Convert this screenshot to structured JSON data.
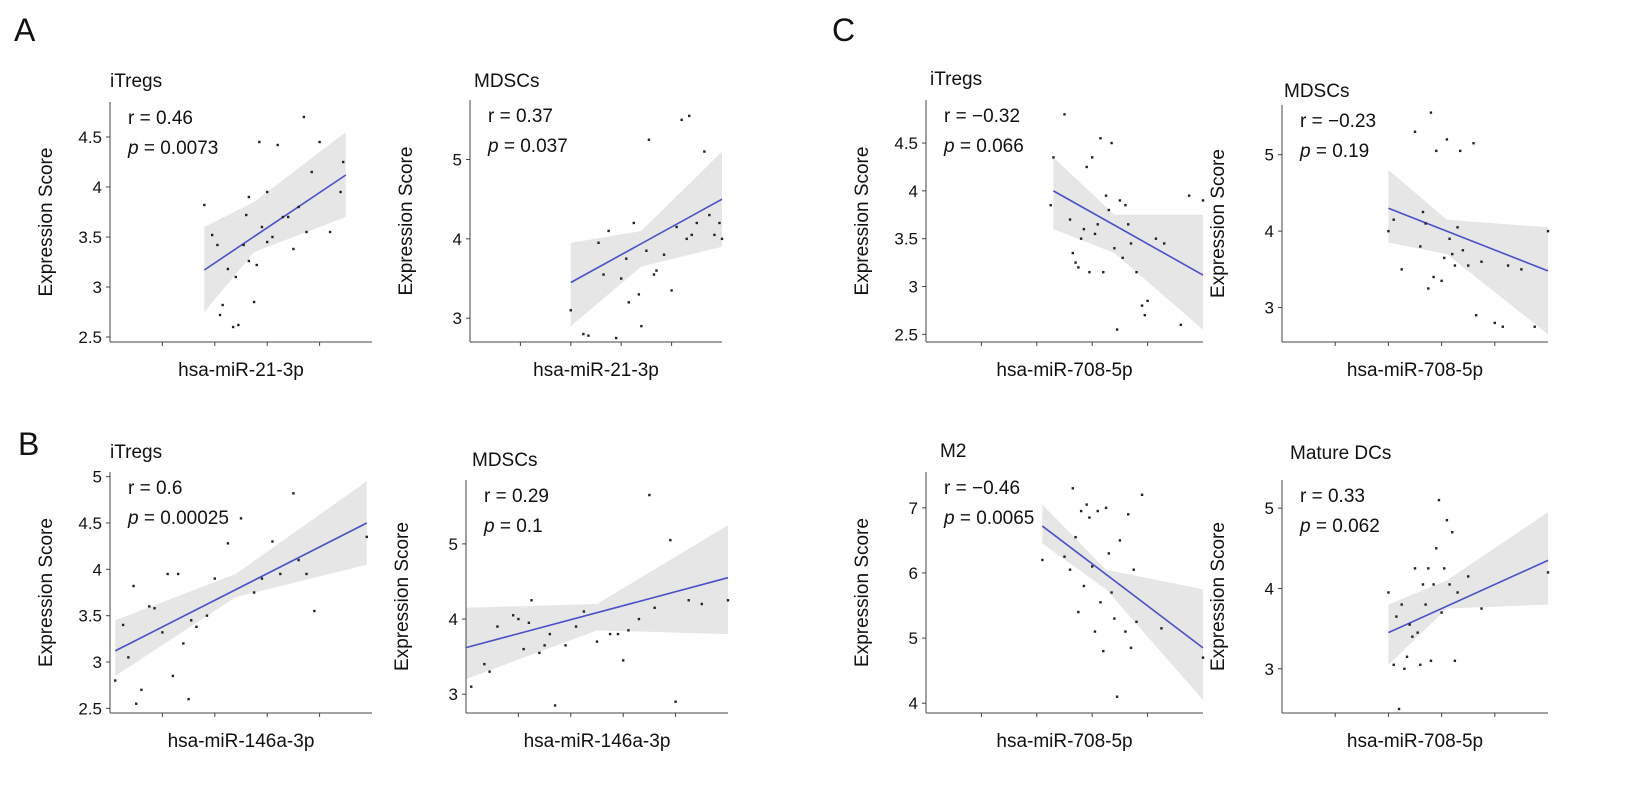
{
  "panel_labels": [
    "A",
    "B",
    "C"
  ],
  "axis_ylabel": "Expression Score",
  "stat_r_prefix": "r = ",
  "stat_p_prefix": "p",
  "stat_p_eq": " = ",
  "colors": {
    "line": "#4a50c8",
    "band": "#e6e6e6",
    "axis": "#444444",
    "point": "#222222"
  },
  "chart_data": [
    {
      "type": "scatter",
      "title": "iTregs",
      "xlabel": "hsa-miR-21-3p",
      "ylabel": "Expression Score",
      "r": "0.46",
      "p": "0.0073",
      "ylim": [
        2.45,
        4.85
      ],
      "yticks": [
        "2.5",
        "3",
        "3.5",
        "4",
        "4.5"
      ],
      "xlim": [
        0,
        1
      ],
      "points": [
        [
          0.36,
          3.82
        ],
        [
          0.39,
          3.52
        ],
        [
          0.41,
          3.42
        ],
        [
          0.42,
          2.72
        ],
        [
          0.43,
          2.82
        ],
        [
          0.45,
          3.18
        ],
        [
          0.47,
          2.6
        ],
        [
          0.48,
          3.1
        ],
        [
          0.49,
          2.62
        ],
        [
          0.51,
          3.42
        ],
        [
          0.52,
          3.72
        ],
        [
          0.53,
          3.26
        ],
        [
          0.53,
          3.9
        ],
        [
          0.55,
          2.85
        ],
        [
          0.56,
          3.22
        ],
        [
          0.57,
          4.45
        ],
        [
          0.58,
          3.6
        ],
        [
          0.6,
          3.45
        ],
        [
          0.6,
          3.95
        ],
        [
          0.62,
          3.5
        ],
        [
          0.64,
          4.42
        ],
        [
          0.66,
          3.7
        ],
        [
          0.68,
          3.7
        ],
        [
          0.7,
          3.38
        ],
        [
          0.72,
          3.8
        ],
        [
          0.74,
          4.7
        ],
        [
          0.75,
          3.55
        ],
        [
          0.77,
          4.15
        ],
        [
          0.8,
          4.45
        ],
        [
          0.84,
          3.55
        ],
        [
          0.88,
          3.95
        ],
        [
          0.89,
          4.25
        ]
      ],
      "fit": {
        "x": [
          0.36,
          0.9
        ],
        "y": [
          3.17,
          4.12
        ]
      },
      "band": [
        [
          0.36,
          2.75,
          3.6
        ],
        [
          0.55,
          3.35,
          3.85
        ],
        [
          0.9,
          3.7,
          4.55
        ]
      ]
    },
    {
      "type": "scatter",
      "title": "MDSCs",
      "xlabel": "hsa-miR-21-3p",
      "ylabel": "Expression Score",
      "r": "0.37",
      "p": "0.037",
      "ylim": [
        2.7,
        5.75
      ],
      "yticks": [
        "3",
        "4",
        "5"
      ],
      "xlim": [
        0,
        1
      ],
      "points": [
        [
          0.4,
          3.1
        ],
        [
          0.45,
          2.8
        ],
        [
          0.47,
          2.78
        ],
        [
          0.51,
          3.95
        ],
        [
          0.53,
          3.55
        ],
        [
          0.55,
          4.1
        ],
        [
          0.58,
          2.75
        ],
        [
          0.6,
          3.5
        ],
        [
          0.62,
          3.75
        ],
        [
          0.63,
          3.2
        ],
        [
          0.65,
          4.2
        ],
        [
          0.67,
          3.3
        ],
        [
          0.68,
          2.9
        ],
        [
          0.7,
          3.85
        ],
        [
          0.71,
          5.25
        ],
        [
          0.73,
          3.55
        ],
        [
          0.74,
          3.6
        ],
        [
          0.77,
          3.8
        ],
        [
          0.8,
          3.35
        ],
        [
          0.82,
          4.15
        ],
        [
          0.84,
          5.5
        ],
        [
          0.86,
          4.0
        ],
        [
          0.87,
          5.55
        ],
        [
          0.88,
          4.05
        ],
        [
          0.9,
          4.2
        ],
        [
          0.93,
          5.1
        ],
        [
          0.95,
          4.3
        ],
        [
          0.97,
          4.05
        ],
        [
          0.99,
          4.2
        ],
        [
          1.0,
          4.0
        ]
      ],
      "fit": {
        "x": [
          0.4,
          1.0
        ],
        "y": [
          3.45,
          4.5
        ]
      },
      "band": [
        [
          0.4,
          2.9,
          3.95
        ],
        [
          0.68,
          3.65,
          4.1
        ],
        [
          1.0,
          3.9,
          5.1
        ]
      ]
    },
    {
      "type": "scatter",
      "title": "iTregs",
      "xlabel": "hsa-miR-146a-3p",
      "ylabel": "Expression Score",
      "r": "0.6",
      "p": "0.00025",
      "ylim": [
        2.45,
        5.05
      ],
      "yticks": [
        "2.5",
        "3",
        "3.5",
        "4",
        "4.5",
        "5"
      ],
      "xlim": [
        0,
        1
      ],
      "points": [
        [
          0.02,
          2.8
        ],
        [
          0.05,
          3.4
        ],
        [
          0.07,
          3.05
        ],
        [
          0.09,
          3.82
        ],
        [
          0.1,
          2.55
        ],
        [
          0.12,
          2.7
        ],
        [
          0.15,
          3.6
        ],
        [
          0.17,
          3.58
        ],
        [
          0.2,
          3.32
        ],
        [
          0.22,
          3.95
        ],
        [
          0.24,
          2.85
        ],
        [
          0.26,
          3.95
        ],
        [
          0.28,
          3.2
        ],
        [
          0.3,
          2.6
        ],
        [
          0.31,
          3.45
        ],
        [
          0.33,
          3.38
        ],
        [
          0.37,
          3.5
        ],
        [
          0.4,
          3.9
        ],
        [
          0.45,
          4.28
        ],
        [
          0.5,
          4.55
        ],
        [
          0.55,
          3.75
        ],
        [
          0.58,
          3.9
        ],
        [
          0.62,
          4.3
        ],
        [
          0.65,
          3.95
        ],
        [
          0.7,
          4.82
        ],
        [
          0.72,
          4.1
        ],
        [
          0.75,
          3.95
        ],
        [
          0.78,
          3.55
        ],
        [
          0.98,
          4.35
        ]
      ],
      "fit": {
        "x": [
          0.02,
          0.98
        ],
        "y": [
          3.12,
          4.5
        ]
      },
      "band": [
        [
          0.02,
          2.85,
          3.45
        ],
        [
          0.48,
          3.7,
          3.95
        ],
        [
          0.98,
          4.05,
          4.95
        ]
      ]
    },
    {
      "type": "scatter",
      "title": "MDSCs",
      "xlabel": "hsa-miR-146a-3p",
      "ylabel": "Expression Score",
      "r": "0.29",
      "p": "0.1",
      "ylim": [
        2.75,
        5.85
      ],
      "yticks": [
        "3",
        "4",
        "5"
      ],
      "xlim": [
        0,
        1
      ],
      "points": [
        [
          0.02,
          3.1
        ],
        [
          0.07,
          3.4
        ],
        [
          0.09,
          3.3
        ],
        [
          0.12,
          3.9
        ],
        [
          0.18,
          4.05
        ],
        [
          0.2,
          4.0
        ],
        [
          0.22,
          3.6
        ],
        [
          0.24,
          3.95
        ],
        [
          0.25,
          4.25
        ],
        [
          0.28,
          3.55
        ],
        [
          0.3,
          3.65
        ],
        [
          0.32,
          3.8
        ],
        [
          0.34,
          2.85
        ],
        [
          0.38,
          3.65
        ],
        [
          0.42,
          3.9
        ],
        [
          0.45,
          4.1
        ],
        [
          0.5,
          3.7
        ],
        [
          0.55,
          3.8
        ],
        [
          0.58,
          3.8
        ],
        [
          0.6,
          3.45
        ],
        [
          0.62,
          3.85
        ],
        [
          0.66,
          4.0
        ],
        [
          0.7,
          5.65
        ],
        [
          0.72,
          4.15
        ],
        [
          0.78,
          5.05
        ],
        [
          0.8,
          2.9
        ],
        [
          0.85,
          4.25
        ],
        [
          0.9,
          4.2
        ],
        [
          1.0,
          4.25
        ]
      ],
      "fit": {
        "x": [
          0.0,
          1.0
        ],
        "y": [
          3.62,
          4.55
        ]
      },
      "band": [
        [
          0.0,
          3.2,
          4.15
        ],
        [
          0.5,
          3.85,
          4.2
        ],
        [
          1.0,
          3.8,
          5.25
        ]
      ]
    },
    {
      "type": "scatter",
      "title": "iTregs",
      "xlabel": "hsa-miR-708-5p",
      "ylabel": "Expression Score",
      "r": "−0.32",
      "p": "0.066",
      "ylim": [
        2.42,
        4.95
      ],
      "yticks": [
        "2.5",
        "3",
        "3.5",
        "4",
        "4.5"
      ],
      "xlim": [
        0,
        1
      ],
      "points": [
        [
          0.45,
          3.85
        ],
        [
          0.46,
          4.35
        ],
        [
          0.5,
          4.8
        ],
        [
          0.52,
          3.7
        ],
        [
          0.53,
          3.35
        ],
        [
          0.54,
          3.25
        ],
        [
          0.55,
          3.2
        ],
        [
          0.56,
          3.5
        ],
        [
          0.57,
          3.6
        ],
        [
          0.58,
          4.25
        ],
        [
          0.59,
          3.15
        ],
        [
          0.6,
          4.35
        ],
        [
          0.61,
          3.55
        ],
        [
          0.62,
          3.65
        ],
        [
          0.63,
          4.55
        ],
        [
          0.64,
          3.15
        ],
        [
          0.65,
          3.95
        ],
        [
          0.66,
          3.8
        ],
        [
          0.67,
          4.5
        ],
        [
          0.68,
          3.4
        ],
        [
          0.69,
          2.55
        ],
        [
          0.7,
          3.9
        ],
        [
          0.71,
          3.3
        ],
        [
          0.72,
          3.85
        ],
        [
          0.73,
          3.65
        ],
        [
          0.74,
          3.45
        ],
        [
          0.76,
          3.15
        ],
        [
          0.78,
          2.8
        ],
        [
          0.79,
          2.7
        ],
        [
          0.8,
          2.85
        ],
        [
          0.83,
          3.5
        ],
        [
          0.86,
          3.45
        ],
        [
          0.92,
          2.6
        ],
        [
          0.95,
          3.95
        ],
        [
          1.0,
          3.9
        ]
      ],
      "fit": {
        "x": [
          0.46,
          1.0
        ],
        "y": [
          4.0,
          3.12
        ]
      },
      "band": [
        [
          0.46,
          3.6,
          4.35
        ],
        [
          0.68,
          3.35,
          3.75
        ],
        [
          1.0,
          2.55,
          3.75
        ]
      ]
    },
    {
      "type": "scatter",
      "title": "MDSCs",
      "xlabel": "hsa-miR-708-5p",
      "ylabel": "Expression Score",
      "r": "−0.23",
      "p": "0.19",
      "ylim": [
        2.55,
        5.65
      ],
      "yticks": [
        "3",
        "4",
        "5"
      ],
      "xlim": [
        0,
        1
      ],
      "points": [
        [
          0.4,
          4.0
        ],
        [
          0.42,
          4.15
        ],
        [
          0.45,
          3.5
        ],
        [
          0.5,
          5.3
        ],
        [
          0.52,
          3.8
        ],
        [
          0.53,
          4.25
        ],
        [
          0.54,
          4.1
        ],
        [
          0.55,
          3.25
        ],
        [
          0.56,
          5.55
        ],
        [
          0.57,
          3.4
        ],
        [
          0.58,
          5.05
        ],
        [
          0.6,
          3.35
        ],
        [
          0.61,
          3.65
        ],
        [
          0.62,
          5.2
        ],
        [
          0.63,
          3.9
        ],
        [
          0.64,
          3.7
        ],
        [
          0.65,
          3.55
        ],
        [
          0.66,
          4.05
        ],
        [
          0.67,
          5.05
        ],
        [
          0.68,
          3.75
        ],
        [
          0.7,
          3.55
        ],
        [
          0.72,
          5.15
        ],
        [
          0.73,
          2.9
        ],
        [
          0.75,
          3.6
        ],
        [
          0.8,
          2.8
        ],
        [
          0.83,
          2.75
        ],
        [
          0.85,
          3.55
        ],
        [
          0.9,
          3.5
        ],
        [
          0.95,
          2.75
        ],
        [
          1.0,
          4.0
        ]
      ],
      "fit": {
        "x": [
          0.4,
          1.0
        ],
        "y": [
          4.3,
          3.48
        ]
      },
      "band": [
        [
          0.4,
          3.85,
          4.8
        ],
        [
          0.62,
          3.7,
          4.15
        ],
        [
          1.0,
          2.65,
          4.05
        ]
      ]
    },
    {
      "type": "scatter",
      "title": "M2",
      "xlabel": "hsa-miR-708-5p",
      "ylabel": "Expression Score",
      "r": "−0.46",
      "p": "0.0065",
      "ylim": [
        3.85,
        7.55
      ],
      "yticks": [
        "4",
        "5",
        "6",
        "7"
      ],
      "xlim": [
        0,
        1
      ],
      "points": [
        [
          0.42,
          6.2
        ],
        [
          0.5,
          6.25
        ],
        [
          0.52,
          6.05
        ],
        [
          0.53,
          7.3
        ],
        [
          0.54,
          6.55
        ],
        [
          0.55,
          5.4
        ],
        [
          0.56,
          6.95
        ],
        [
          0.57,
          5.8
        ],
        [
          0.58,
          7.05
        ],
        [
          0.59,
          6.85
        ],
        [
          0.6,
          6.1
        ],
        [
          0.61,
          5.1
        ],
        [
          0.62,
          6.95
        ],
        [
          0.63,
          5.55
        ],
        [
          0.64,
          4.8
        ],
        [
          0.65,
          7.0
        ],
        [
          0.66,
          6.3
        ],
        [
          0.67,
          5.7
        ],
        [
          0.68,
          5.3
        ],
        [
          0.69,
          4.1
        ],
        [
          0.7,
          6.5
        ],
        [
          0.72,
          5.1
        ],
        [
          0.73,
          6.9
        ],
        [
          0.74,
          4.85
        ],
        [
          0.75,
          6.05
        ],
        [
          0.76,
          5.25
        ],
        [
          0.78,
          7.2
        ],
        [
          0.85,
          5.15
        ],
        [
          1.0,
          4.7
        ]
      ],
      "fit": {
        "x": [
          0.42,
          1.0
        ],
        "y": [
          6.72,
          4.85
        ]
      },
      "band": [
        [
          0.42,
          6.45,
          7.05
        ],
        [
          0.65,
          5.75,
          6.05
        ],
        [
          1.0,
          4.05,
          5.75
        ]
      ]
    },
    {
      "type": "scatter",
      "title": "Mature DCs",
      "xlabel": "hsa-miR-708-5p",
      "ylabel": "Expression Score",
      "r": "0.33",
      "p": "0.062",
      "ylim": [
        2.45,
        5.35
      ],
      "yticks": [
        "3",
        "4",
        "5"
      ],
      "xlim": [
        0,
        1
      ],
      "points": [
        [
          0.4,
          3.95
        ],
        [
          0.42,
          3.05
        ],
        [
          0.43,
          3.65
        ],
        [
          0.44,
          2.5
        ],
        [
          0.45,
          3.8
        ],
        [
          0.46,
          3.0
        ],
        [
          0.47,
          3.15
        ],
        [
          0.48,
          3.55
        ],
        [
          0.49,
          3.4
        ],
        [
          0.5,
          4.25
        ],
        [
          0.51,
          3.45
        ],
        [
          0.52,
          3.05
        ],
        [
          0.53,
          4.05
        ],
        [
          0.54,
          3.8
        ],
        [
          0.55,
          4.25
        ],
        [
          0.56,
          3.1
        ],
        [
          0.57,
          4.05
        ],
        [
          0.58,
          4.5
        ],
        [
          0.59,
          5.1
        ],
        [
          0.6,
          3.7
        ],
        [
          0.61,
          4.25
        ],
        [
          0.62,
          4.85
        ],
        [
          0.63,
          4.05
        ],
        [
          0.64,
          4.7
        ],
        [
          0.65,
          3.1
        ],
        [
          0.66,
          3.95
        ],
        [
          0.7,
          4.15
        ],
        [
          0.75,
          3.75
        ],
        [
          1.0,
          4.2
        ]
      ],
      "fit": {
        "x": [
          0.4,
          1.0
        ],
        "y": [
          3.45,
          4.35
        ]
      },
      "band": [
        [
          0.4,
          3.05,
          3.8
        ],
        [
          0.62,
          3.75,
          4.1
        ],
        [
          1.0,
          3.8,
          4.95
        ]
      ]
    }
  ]
}
